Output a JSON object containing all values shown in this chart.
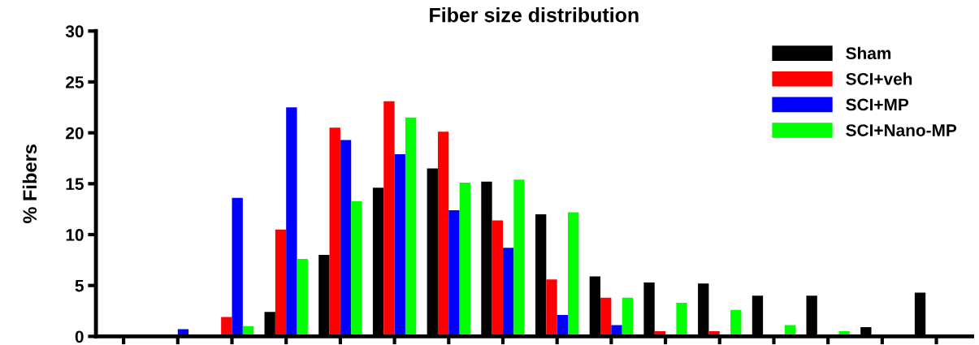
{
  "chart_data": {
    "type": "bar",
    "title": "Fiber size distribution",
    "ylabel": "% Fibers",
    "categories": [
      null,
      null,
      null,
      null,
      null,
      null,
      null,
      null,
      null,
      null,
      null,
      null,
      null,
      null,
      null,
      null
    ],
    "series": [
      {
        "name": "Sham",
        "color": "#000000",
        "values": [
          null,
          null,
          null,
          2.4,
          8.0,
          14.6,
          16.5,
          15.2,
          12.0,
          5.9,
          5.3,
          5.2,
          4.0,
          4.0,
          0.9,
          4.3
        ]
      },
      {
        "name": "SCI+veh",
        "color": "#ff0000",
        "values": [
          null,
          null,
          1.9,
          10.5,
          20.5,
          23.1,
          20.1,
          11.4,
          5.6,
          3.8,
          0.5,
          0.5,
          null,
          null,
          null,
          null
        ]
      },
      {
        "name": "SCI+MP",
        "color": "#0000ff",
        "values": [
          null,
          0.7,
          13.6,
          22.5,
          19.3,
          17.9,
          12.4,
          8.7,
          2.1,
          1.1,
          null,
          null,
          null,
          null,
          null,
          null
        ]
      },
      {
        "name": "SCI+Nano-MP",
        "color": "#00ff00",
        "values": [
          null,
          null,
          1.0,
          7.6,
          13.3,
          21.5,
          15.1,
          15.4,
          12.2,
          3.8,
          3.3,
          2.6,
          1.1,
          0.5,
          null,
          null
        ]
      }
    ],
    "ylim": [
      0,
      30
    ],
    "yticks": [
      0,
      5,
      10,
      15,
      20,
      25,
      30
    ],
    "tick_labels": "y",
    "legend": "top right",
    "grid": false
  }
}
